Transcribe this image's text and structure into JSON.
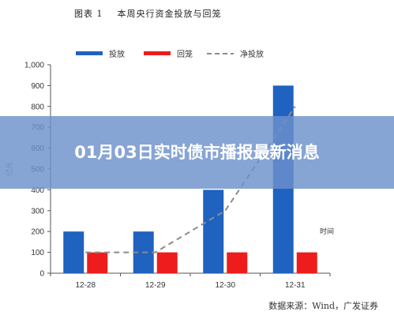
{
  "figure": {
    "title": "图表 1    本周央行资金投放与回笼",
    "source": "数据来源：Wind，广发证券"
  },
  "banner": {
    "headline": "01月03日实时债市播报最新消息"
  },
  "colors": {
    "put": "#1f62c0",
    "withdraw": "#ee1c1c",
    "net": "#8c8c8c",
    "axis": "#555555",
    "text": "#333333"
  },
  "chart_data": {
    "type": "bar",
    "title": "本周央行资金投放与回笼",
    "ylabel": "亿元",
    "xlabel": "时间",
    "ylim": [
      0,
      1000
    ],
    "yticks": [
      "0",
      "100",
      "200",
      "300",
      "400",
      "500",
      "600",
      "700",
      "800",
      "900",
      "1,000"
    ],
    "categories": [
      "12-28",
      "12-29",
      "12-30",
      "12-31"
    ],
    "series": [
      {
        "name": "投放",
        "type": "bar",
        "color": "#1f62c0",
        "values": [
          200,
          200,
          400,
          900
        ]
      },
      {
        "name": "回笼",
        "type": "bar",
        "color": "#ee1c1c",
        "values": [
          100,
          100,
          100,
          100
        ]
      },
      {
        "name": "净投放",
        "type": "line",
        "style": "dashed",
        "color": "#8c8c8c",
        "values": [
          100,
          100,
          300,
          800
        ]
      }
    ],
    "legend_position": "top",
    "grid": false
  }
}
